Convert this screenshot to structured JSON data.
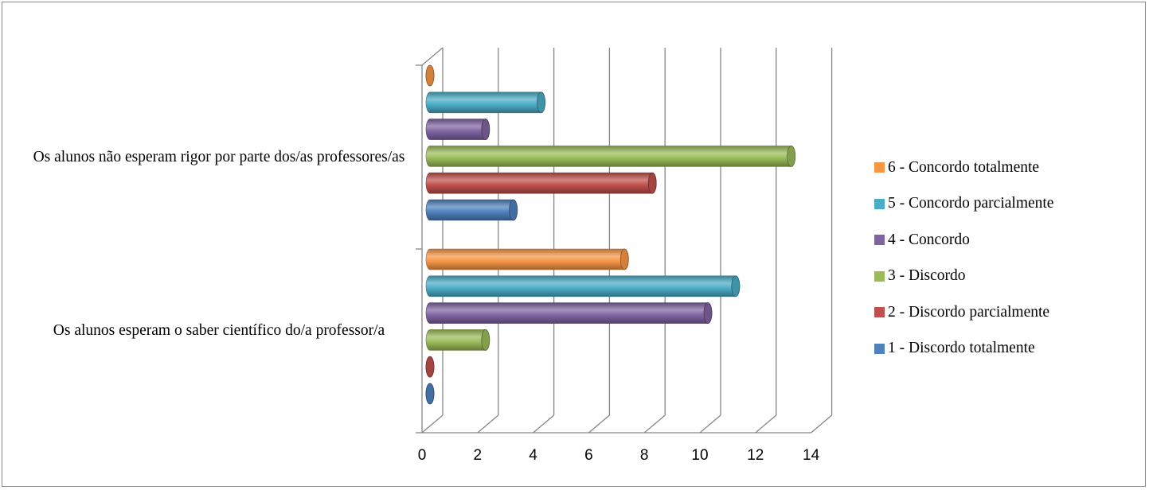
{
  "chart_data": {
    "type": "bar",
    "orientation": "horizontal",
    "style": "3d-cylinder",
    "categories": [
      "Os alunos esperam o saber científico do/a professor/a",
      "Os alunos não esperam rigor por parte dos/as professores/as"
    ],
    "series": [
      {
        "name": "1 - Discordo totalmente",
        "color": "#4f81bd",
        "values": [
          0,
          3
        ]
      },
      {
        "name": "2 - Discordo parcialmente",
        "color": "#c0504d",
        "values": [
          0,
          8
        ]
      },
      {
        "name": "3 - Discordo",
        "color": "#9bbb59",
        "values": [
          2,
          13
        ]
      },
      {
        "name": "4 - Concordo",
        "color": "#8064a2",
        "values": [
          10,
          2
        ]
      },
      {
        "name": "5 - Concordo parcialmente",
        "color": "#4bacc6",
        "values": [
          11,
          4
        ]
      },
      {
        "name": "6 - Concordo totalmente",
        "color": "#f79646",
        "values": [
          7,
          0
        ]
      }
    ],
    "xlim": [
      0,
      14
    ],
    "xticks": [
      "0",
      "2",
      "4",
      "6",
      "8",
      "10",
      "12",
      "14"
    ],
    "gridlines": true,
    "legend_position": "right",
    "xlabel": "",
    "ylabel": "",
    "title": ""
  }
}
